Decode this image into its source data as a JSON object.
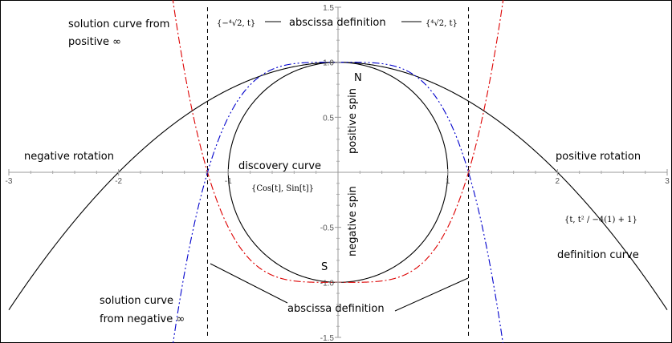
{
  "chart_data": {
    "type": "line",
    "xlim": [
      -3,
      3
    ],
    "ylim": [
      -1.5,
      1.5
    ],
    "x_ticks": [
      "-3",
      "-2",
      "-1",
      "1",
      "2",
      "3"
    ],
    "y_ticks": [
      "1.5",
      "1.0",
      "0.5",
      "-0.5",
      "-1.0",
      "-1.5"
    ],
    "grid": false,
    "series": [
      {
        "curve": "circle",
        "color": "#000000",
        "style": "solid",
        "param_range": [
          0,
          6.2832
        ]
      },
      {
        "curve": "parabola",
        "color": "#000000",
        "style": "solid",
        "coef_a": -0.25,
        "coef_c": 1
      },
      {
        "curve": "quartic",
        "color": "#dd0000",
        "style": "dash-dot",
        "coef_k": 0.5,
        "coef_c": -1
      },
      {
        "curve": "quartic",
        "color": "#0000cc",
        "style": "dash-dot-dot",
        "coef_k": -0.5,
        "coef_c": 1
      }
    ],
    "vertical_lines": [
      {
        "x": -1.1892,
        "style": "dashed"
      },
      {
        "x": 1.1892,
        "style": "dashed"
      }
    ],
    "annotations": {
      "solution_from_pos": [
        "solution curve from",
        "positive ∞"
      ],
      "solution_from_neg": [
        "solution curve",
        "from negative ∞"
      ],
      "abscissa_top": "abscissa definition",
      "abscissa_bottom": "abscissa definition",
      "neg_rotation": "negative rotation",
      "pos_rotation": "positive rotation",
      "discovery": "discovery curve",
      "cos_sin": "{Cos[t], Sin[t]}",
      "pos_spin": "positive spin",
      "neg_spin": "negative spin",
      "north": "N",
      "south": "S",
      "definition": "definition curve",
      "left_point": "{−⁴√2, t}",
      "right_point": "{⁴√2, t}",
      "param_expr": "{t, t² / −4(1) + 1}"
    }
  }
}
